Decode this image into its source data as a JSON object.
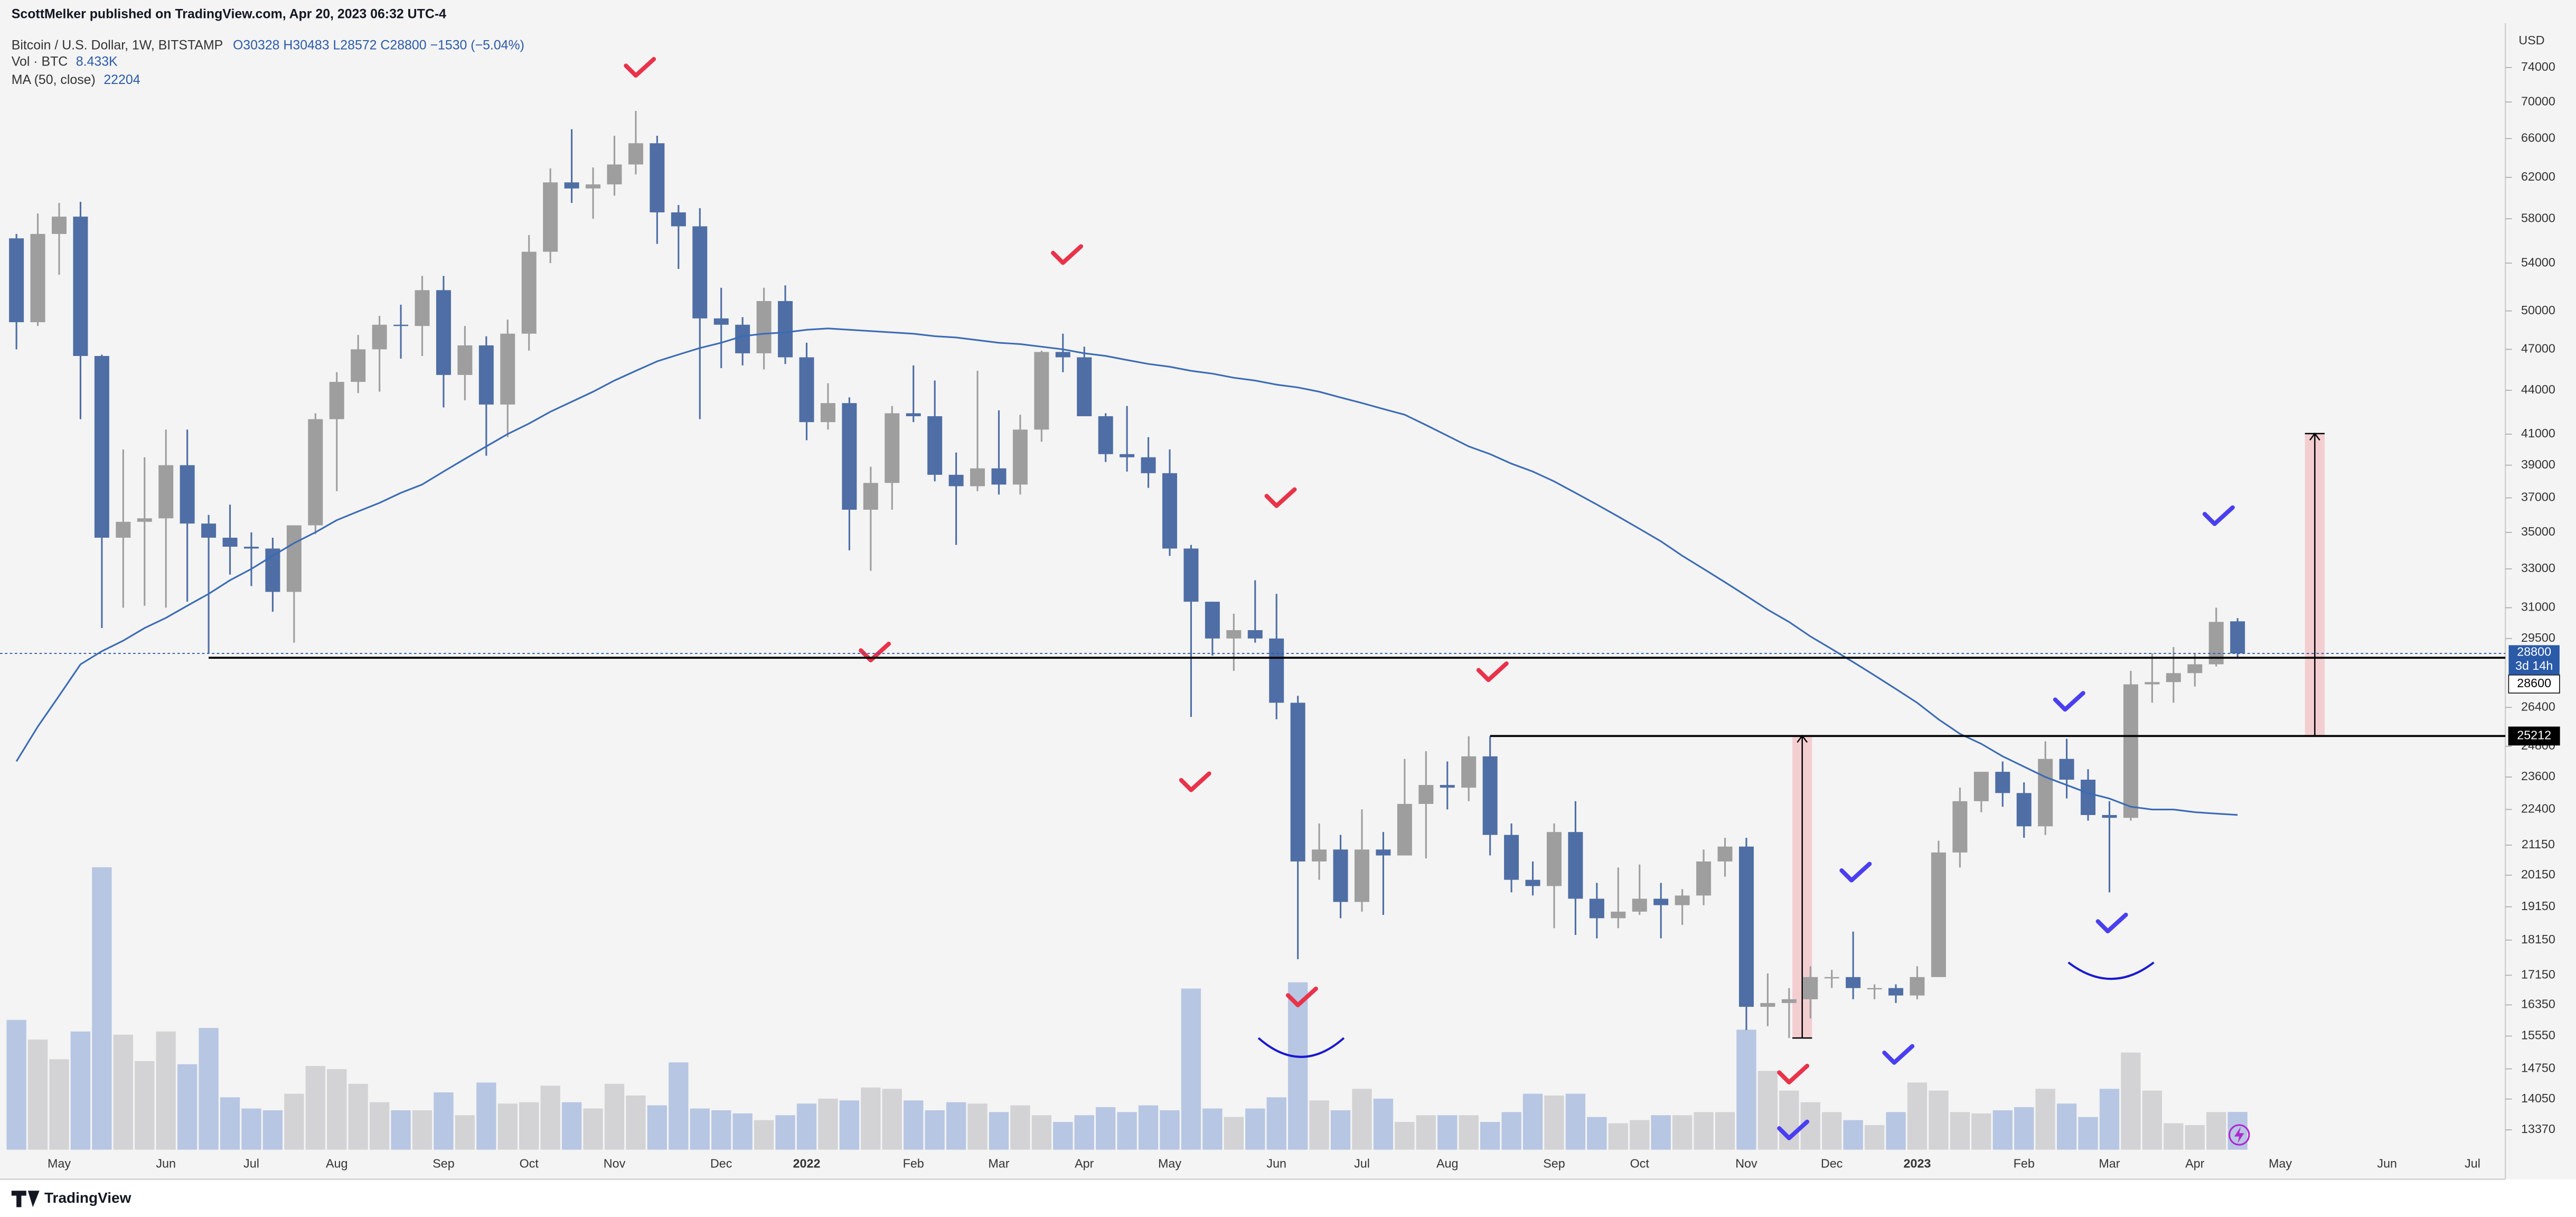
{
  "header": {
    "publisher": "ScottMelker published on TradingView.com, Apr 20, 2023 06:32 UTC-4"
  },
  "footer": {
    "brand": "TradingView"
  },
  "chart_data": {
    "type": "candlestick",
    "title": "Bitcoin / U.S. Dollar, 1W, BITSTAMP",
    "subtitle": "O30328 H30483 L28572 C28800 −1530 (−5.04%)",
    "y_unit": "USD",
    "log_scale": true,
    "grid": false,
    "up_color": "#9e9e9e",
    "down_color": "#4e6ea5",
    "categories": [
      null,
      null,
      "May",
      null,
      null,
      null,
      null,
      "Jun",
      null,
      null,
      null,
      "Jul",
      null,
      null,
      null,
      "Aug",
      null,
      null,
      null,
      null,
      "Sep",
      null,
      null,
      null,
      "Oct",
      null,
      null,
      null,
      "Nov",
      null,
      null,
      null,
      null,
      "Dec",
      null,
      null,
      null,
      "2022",
      null,
      null,
      null,
      null,
      "Feb",
      null,
      null,
      null,
      "Mar",
      null,
      null,
      null,
      "Apr",
      null,
      null,
      null,
      "May",
      null,
      null,
      null,
      null,
      "Jun",
      null,
      null,
      null,
      "Jul",
      null,
      null,
      null,
      "Aug",
      null,
      null,
      null,
      null,
      "Sep",
      null,
      null,
      null,
      "Oct",
      null,
      null,
      null,
      null,
      "Nov",
      null,
      null,
      null,
      "Dec",
      null,
      null,
      null,
      "2023",
      null,
      null,
      null,
      null,
      "Feb",
      null,
      null,
      null,
      "Mar",
      null,
      null,
      null,
      "Apr",
      null,
      null,
      null,
      "May",
      null,
      null,
      null,
      null,
      "Jun",
      null,
      null,
      null,
      "Jul",
      null
    ],
    "open": [
      56200,
      49100,
      56600,
      58200,
      46500,
      34700,
      35600,
      35800,
      39000,
      35500,
      34700,
      34200,
      34100,
      31800,
      35400,
      42000,
      44600,
      47000,
      48900,
      48800,
      51700,
      45100,
      47300,
      43000,
      48200,
      55000,
      61500,
      60900,
      61300,
      63300,
      65500,
      58600,
      57300,
      49400,
      48900,
      46700,
      50800,
      46400,
      41800,
      43100,
      36300,
      37900,
      42400,
      42200,
      38400,
      37700,
      38800,
      37800,
      41300,
      46800,
      46400,
      42200,
      39700,
      39500,
      38500,
      34100,
      31300,
      29500,
      29900,
      29500,
      26600,
      20600,
      21000,
      19300,
      21000,
      20800,
      22600,
      23300,
      23200,
      24400,
      21500,
      20000,
      19800,
      21600,
      19400,
      18800,
      19000,
      19400,
      19200,
      19500,
      20600,
      21100,
      16300,
      16400,
      16500,
      17100,
      17100,
      16800,
      16800,
      16600,
      17100,
      20900,
      22700,
      23800,
      23000,
      21800,
      24300,
      23500,
      22200,
      22100,
      27400,
      27500,
      27900,
      28300,
      30328,
      null,
      null,
      null,
      null,
      null,
      null,
      null,
      null,
      null,
      null,
      null,
      null
    ],
    "high": [
      56600,
      58500,
      59500,
      59600,
      46600,
      40000,
      39500,
      41300,
      41300,
      36000,
      36600,
      35000,
      34700,
      35400,
      42400,
      45300,
      48100,
      49600,
      50500,
      52900,
      52900,
      48800,
      48000,
      49300,
      56500,
      62900,
      67000,
      63000,
      66300,
      69000,
      66300,
      59300,
      59000,
      51900,
      49500,
      51900,
      52100,
      47500,
      44500,
      43500,
      38900,
      42900,
      45800,
      44700,
      39800,
      45400,
      42600,
      42300,
      46900,
      48200,
      47200,
      42400,
      42900,
      40800,
      40000,
      34300,
      31300,
      30700,
      32400,
      31700,
      26900,
      21900,
      21500,
      22400,
      21600,
      24300,
      24600,
      24200,
      25200,
      25200,
      21900,
      20600,
      21900,
      22700,
      19900,
      20400,
      20500,
      19900,
      19700,
      21000,
      21400,
      21400,
      17200,
      16800,
      17400,
      17300,
      18400,
      16900,
      16900,
      17400,
      21300,
      23200,
      23800,
      24200,
      23400,
      25000,
      25100,
      23900,
      22700,
      28000,
      28800,
      29100,
      28800,
      31000,
      30483,
      null,
      null,
      null,
      null,
      null,
      null,
      null,
      null,
      null,
      null,
      null,
      null
    ],
    "low": [
      47000,
      48800,
      53000,
      42000,
      30000,
      31000,
      31100,
      31000,
      31300,
      28800,
      32700,
      32100,
      30800,
      29300,
      34900,
      37400,
      43800,
      43900,
      46300,
      46500,
      42800,
      43300,
      39600,
      40800,
      46900,
      54000,
      59500,
      58000,
      60200,
      62300,
      55700,
      53500,
      42000,
      45600,
      45800,
      45500,
      45900,
      40600,
      41300,
      34000,
      32900,
      36300,
      41800,
      38000,
      34300,
      37400,
      37200,
      37200,
      40500,
      45300,
      42200,
      39200,
      38600,
      37600,
      33700,
      26000,
      28700,
      28000,
      29300,
      25900,
      17600,
      20000,
      18800,
      19000,
      18900,
      20800,
      20700,
      22400,
      22700,
      20800,
      19600,
      19500,
      18500,
      18300,
      18200,
      18500,
      18900,
      18200,
      18600,
      19200,
      20100,
      15700,
      15800,
      15500,
      16000,
      16800,
      16500,
      16500,
      16400,
      16500,
      17100,
      20400,
      22300,
      22500,
      21400,
      21500,
      22800,
      22000,
      19600,
      22000,
      26600,
      26600,
      27300,
      28200,
      28572,
      null,
      null,
      null,
      null,
      null,
      null,
      null,
      null,
      null,
      null,
      null,
      null
    ],
    "close": [
      49100,
      56600,
      58200,
      46500,
      34700,
      35600,
      35800,
      39000,
      35500,
      34700,
      34200,
      34100,
      31800,
      35400,
      42000,
      44600,
      47000,
      48900,
      48800,
      51700,
      45100,
      47300,
      43000,
      48200,
      55000,
      61500,
      60900,
      61300,
      63300,
      65500,
      58600,
      57300,
      49400,
      48900,
      46700,
      50800,
      46400,
      41800,
      43100,
      36300,
      37900,
      42400,
      42200,
      38400,
      37700,
      38800,
      37800,
      41300,
      46800,
      46400,
      42200,
      39700,
      39500,
      38500,
      34100,
      31300,
      29500,
      29900,
      29500,
      26600,
      20600,
      21000,
      19300,
      21000,
      20800,
      22600,
      23300,
      23200,
      24400,
      21500,
      20000,
      19800,
      21600,
      19400,
      18800,
      19000,
      19400,
      19200,
      19500,
      20600,
      21100,
      16300,
      16400,
      16500,
      17100,
      17100,
      16800,
      16800,
      16600,
      17100,
      20900,
      22700,
      23800,
      23000,
      21800,
      24300,
      23500,
      22200,
      22100,
      27400,
      27500,
      27900,
      28300,
      30300,
      28800,
      null,
      null,
      null,
      null,
      null,
      null,
      null,
      null,
      null,
      null,
      null,
      null
    ],
    "volume": {
      "name": "Vol · BTC",
      "label": "8.433K",
      "up_color": "#d3d3d6",
      "down_color": "#b7c6e2",
      "values": [
        29000,
        24600,
        20200,
        26400,
        63100,
        25700,
        19800,
        26400,
        19100,
        27200,
        11700,
        9200,
        8800,
        12500,
        18700,
        18000,
        14700,
        10600,
        8800,
        8800,
        12800,
        7700,
        15000,
        10300,
        10600,
        14300,
        10600,
        9200,
        14700,
        12100,
        9900,
        19500,
        9200,
        8800,
        8100,
        6600,
        7700,
        10300,
        11400,
        11000,
        13900,
        13600,
        11000,
        8800,
        10600,
        10300,
        8400,
        9900,
        7700,
        6200,
        7700,
        9500,
        8400,
        9900,
        8800,
        36000,
        9200,
        7300,
        9200,
        11700,
        37400,
        11000,
        8800,
        13600,
        11400,
        6200,
        7700,
        7700,
        7700,
        6200,
        8400,
        12500,
        12100,
        12500,
        7300,
        5900,
        6600,
        7700,
        7700,
        8400,
        8400,
        26800,
        17600,
        13200,
        10600,
        8400,
        6600,
        5500,
        8400,
        15000,
        13200,
        8400,
        8100,
        8800,
        9500,
        13600,
        10300,
        7300,
        13600,
        21700,
        13200,
        5900,
        5500,
        8400,
        8433,
        null,
        null,
        null,
        null,
        null,
        null,
        null,
        null,
        null,
        null,
        null,
        null
      ]
    },
    "series": [
      {
        "name": "MA (50, close)",
        "label": "22204",
        "color": "#3b6bb5",
        "values": [
          24200,
          25600,
          26900,
          28300,
          28900,
          29400,
          30000,
          30500,
          31100,
          31700,
          32400,
          33000,
          33700,
          34400,
          35000,
          35700,
          36200,
          36700,
          37300,
          37800,
          38600,
          39400,
          40200,
          41000,
          41700,
          42500,
          43200,
          43900,
          44700,
          45400,
          46100,
          46600,
          47100,
          47500,
          48000,
          48200,
          48300,
          48500,
          48600,
          48500,
          48400,
          48300,
          48200,
          48000,
          47900,
          47700,
          47500,
          47400,
          47200,
          47000,
          46700,
          46500,
          46200,
          45900,
          45700,
          45400,
          45200,
          44900,
          44700,
          44400,
          44200,
          43900,
          43500,
          43100,
          42700,
          42300,
          41600,
          40900,
          40200,
          39700,
          39100,
          38600,
          38000,
          37300,
          36600,
          35900,
          35200,
          34500,
          33700,
          33000,
          32300,
          31600,
          30900,
          30300,
          29600,
          29000,
          28400,
          27800,
          27200,
          26600,
          25900,
          25300,
          24900,
          24400,
          24000,
          23600,
          23300,
          23000,
          22800,
          22500,
          22400,
          22400,
          22300,
          22250,
          22204,
          null,
          null,
          null,
          null,
          null,
          null,
          null,
          null,
          null,
          null,
          null,
          null
        ]
      }
    ],
    "ylim": [
      12950,
      79500
    ],
    "yticks": [
      74000,
      70000,
      66000,
      62000,
      58000,
      54000,
      50000,
      47000,
      44000,
      41000,
      39000,
      37000,
      35000,
      33000,
      31000,
      29500,
      26400,
      24800,
      23600,
      22400,
      21150,
      20150,
      19150,
      18150,
      17150,
      16350,
      15550,
      14750,
      14050,
      13370
    ],
    "last_price": {
      "value": 28800,
      "countdown": "3d 14h",
      "color": "#2a5aa8"
    },
    "levels": [
      {
        "value": 28600,
        "color": "#000000"
      },
      {
        "value": 25212,
        "color": "#000000"
      }
    ]
  }
}
